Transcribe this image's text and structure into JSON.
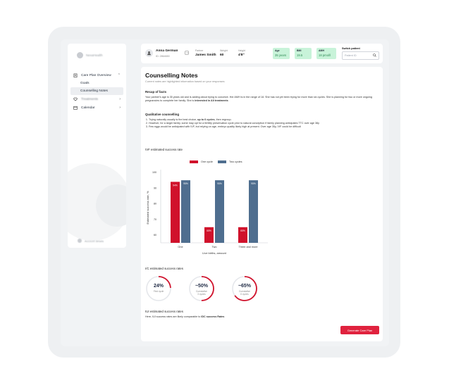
{
  "sidebar": {
    "brand": "NexaHealth",
    "items": [
      {
        "label": "Care Plan Overview",
        "icon": "clipboard-icon",
        "chevron": "⌃"
      },
      {
        "label": "Goals",
        "sub": true
      },
      {
        "label": "Counselling Notes",
        "sub": true,
        "active": true
      },
      {
        "label": "Treatments",
        "icon": "heart-icon",
        "chevron": "›",
        "blurred": true
      },
      {
        "label": "Calendar",
        "icon": "calendar-icon",
        "chevron": "›"
      }
    ],
    "bottom_label": "Account details"
  },
  "patient": {
    "name": "Anna German",
    "id": "ID: 2864650",
    "partner_label": "Partner",
    "partner": "James Smith",
    "weight_label": "Weight",
    "weight": "60",
    "height_label": "Height",
    "height": "4'8\"",
    "chips": [
      {
        "label": "Age",
        "value": "35 years"
      },
      {
        "label": "BMI",
        "value": "19.5"
      },
      {
        "label": "AMH",
        "value": "18 pmol/l"
      }
    ],
    "switch_label": "Switch patient",
    "switch_placeholder": "Patient ID"
  },
  "main": {
    "title": "Counselling Notes",
    "subtitle": "Current notes are highlighted information based on your responses",
    "recap_heading": "Recap of facts",
    "recap_text_1": "Your partner's age is 35 years old and is adding about trying to conceive. Her AMH is in the range of 18. She has not yet been trying for more than six cycles. She is planning for two or more ongoing pregnancies to complete her family. She is ",
    "recap_bold": "interested in All treatments",
    "qual_heading": "Qualitative counselling",
    "qual_items": [
      {
        "pre": "Trying naturally usually is the best choice, ",
        "bold": "up to 6 cycles",
        "post": ", then regroup."
      },
      {
        "pre": "However, for a larger family, some may opt for a fertility preservation cycle prior to natural conception if family planning anticipates TTC over age 38y",
        "bold": "",
        "post": ""
      },
      {
        "pre": "Few eggs would be anticipated with IVF, but relying on age, embryo quality likely high at present. Over age 35y, IVF could be difficult",
        "bold": "",
        "post": ""
      }
    ],
    "ivf_heading": "IVF estimated success rate",
    "iuic_heading": "I/C estimated success rates",
    "iui_heading": "IUI estimated success rates",
    "iui_text_pre": "Here, IUI success rates are likely comparable to ",
    "iui_text_bold": "IDC success Rates",
    "button": "Generate Care Plan",
    "rings": [
      {
        "big": "24%",
        "small1": "First cycle",
        "small2": "",
        "fraction": 0.24
      },
      {
        "big": "~50%",
        "small1": "Cumulative",
        "small2": "3 cycles",
        "fraction": 0.5
      },
      {
        "big": "~65%",
        "small1": "Cumulative",
        "small2": "6 cycles",
        "fraction": 0.65
      }
    ]
  },
  "chart_data": {
    "type": "bar",
    "categories": [
      "One",
      "Two",
      "Three and more"
    ],
    "series": [
      {
        "name": "One cycle",
        "values": [
          94,
          65,
          65
        ],
        "labels": [
          "94%",
          "65%",
          "65%"
        ],
        "color": "#d0112b"
      },
      {
        "name": "Two cycles",
        "values": [
          95,
          95,
          95
        ],
        "labels": [
          "95%",
          "95%",
          "95%"
        ],
        "color": "#4f6e8f"
      }
    ],
    "ylabel": "Estimated success rate, %",
    "xlabel": "Live births, amount",
    "yticks": [
      60,
      70,
      80,
      90,
      100
    ],
    "ylim": [
      55,
      100
    ],
    "legend": "top-center",
    "grid": false
  },
  "colors": {
    "accent": "#e0223e",
    "chip_bg": "#c8f3d9",
    "ring_track": "#e5e7eb",
    "ring_fill": "#d0112b"
  }
}
